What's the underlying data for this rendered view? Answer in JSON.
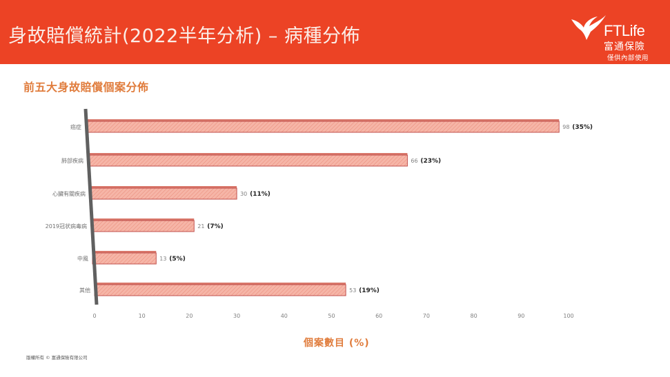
{
  "header": {
    "title": "身故賠償統計(2022半年分析) – 病種分佈",
    "background_color": "#ec4325"
  },
  "logo": {
    "brand": "FTLife",
    "name_cn": "富通保險",
    "notice": "僅供內部使用"
  },
  "subtitle": "前五大身故賠償個案分佈",
  "footer": "版權所有 © 富通保險有限公司",
  "chart_data": {
    "type": "bar",
    "orientation": "horizontal",
    "title": "前五大身故賠償個案分佈",
    "xlabel": "個案數目 (%)",
    "ylabel": "",
    "categories": [
      "癌症",
      "肺部疾病",
      "心臟有關疾病",
      "2019冠状病毒病",
      "中風",
      "其他"
    ],
    "values": [
      98,
      66,
      30,
      21,
      13,
      53
    ],
    "percent_labels": [
      "(35%)",
      "(23%)",
      "(11%)",
      "(7%)",
      "(5%)",
      "(19%)"
    ],
    "xlim": [
      0,
      100
    ],
    "xticks": [
      0,
      10,
      20,
      30,
      40,
      50,
      60,
      70,
      80,
      90,
      100
    ],
    "grid": false,
    "legend": null,
    "bar_color": "#f4a99a",
    "bar_border_color": "#c0504d",
    "axis_color": "#606060",
    "label_color": "#e07c3c"
  }
}
